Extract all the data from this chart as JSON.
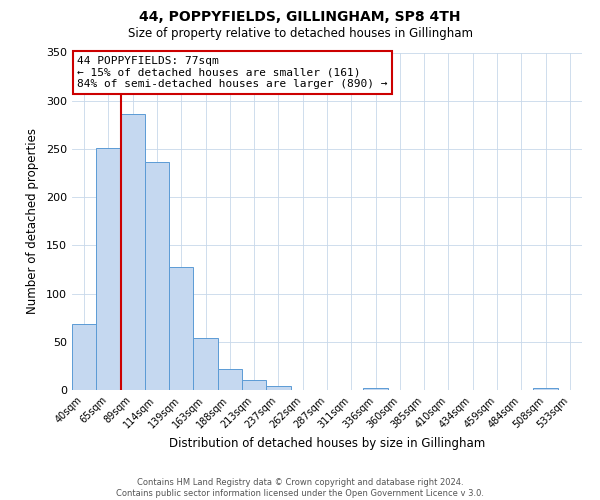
{
  "title": "44, POPPYFIELDS, GILLINGHAM, SP8 4TH",
  "subtitle": "Size of property relative to detached houses in Gillingham",
  "xlabel": "Distribution of detached houses by size in Gillingham",
  "ylabel": "Number of detached properties",
  "bar_labels": [
    "40sqm",
    "65sqm",
    "89sqm",
    "114sqm",
    "139sqm",
    "163sqm",
    "188sqm",
    "213sqm",
    "237sqm",
    "262sqm",
    "287sqm",
    "311sqm",
    "336sqm",
    "360sqm",
    "385sqm",
    "410sqm",
    "434sqm",
    "459sqm",
    "484sqm",
    "508sqm",
    "533sqm"
  ],
  "bar_values": [
    68,
    251,
    286,
    236,
    128,
    54,
    22,
    10,
    4,
    0,
    0,
    0,
    2,
    0,
    0,
    0,
    0,
    0,
    0,
    2,
    0
  ],
  "bar_color": "#c5d8f0",
  "bar_edge_color": "#5b9bd5",
  "vline_x": 1.5,
  "vline_color": "#cc0000",
  "ylim": [
    0,
    350
  ],
  "yticks": [
    0,
    50,
    100,
    150,
    200,
    250,
    300,
    350
  ],
  "annotation_title": "44 POPPYFIELDS: 77sqm",
  "annotation_line1": "← 15% of detached houses are smaller (161)",
  "annotation_line2": "84% of semi-detached houses are larger (890) →",
  "annotation_box_color": "#ffffff",
  "annotation_box_edge_color": "#cc0000",
  "footer_line1": "Contains HM Land Registry data © Crown copyright and database right 2024.",
  "footer_line2": "Contains public sector information licensed under the Open Government Licence v 3.0.",
  "background_color": "#ffffff",
  "grid_color": "#c8d8ea"
}
